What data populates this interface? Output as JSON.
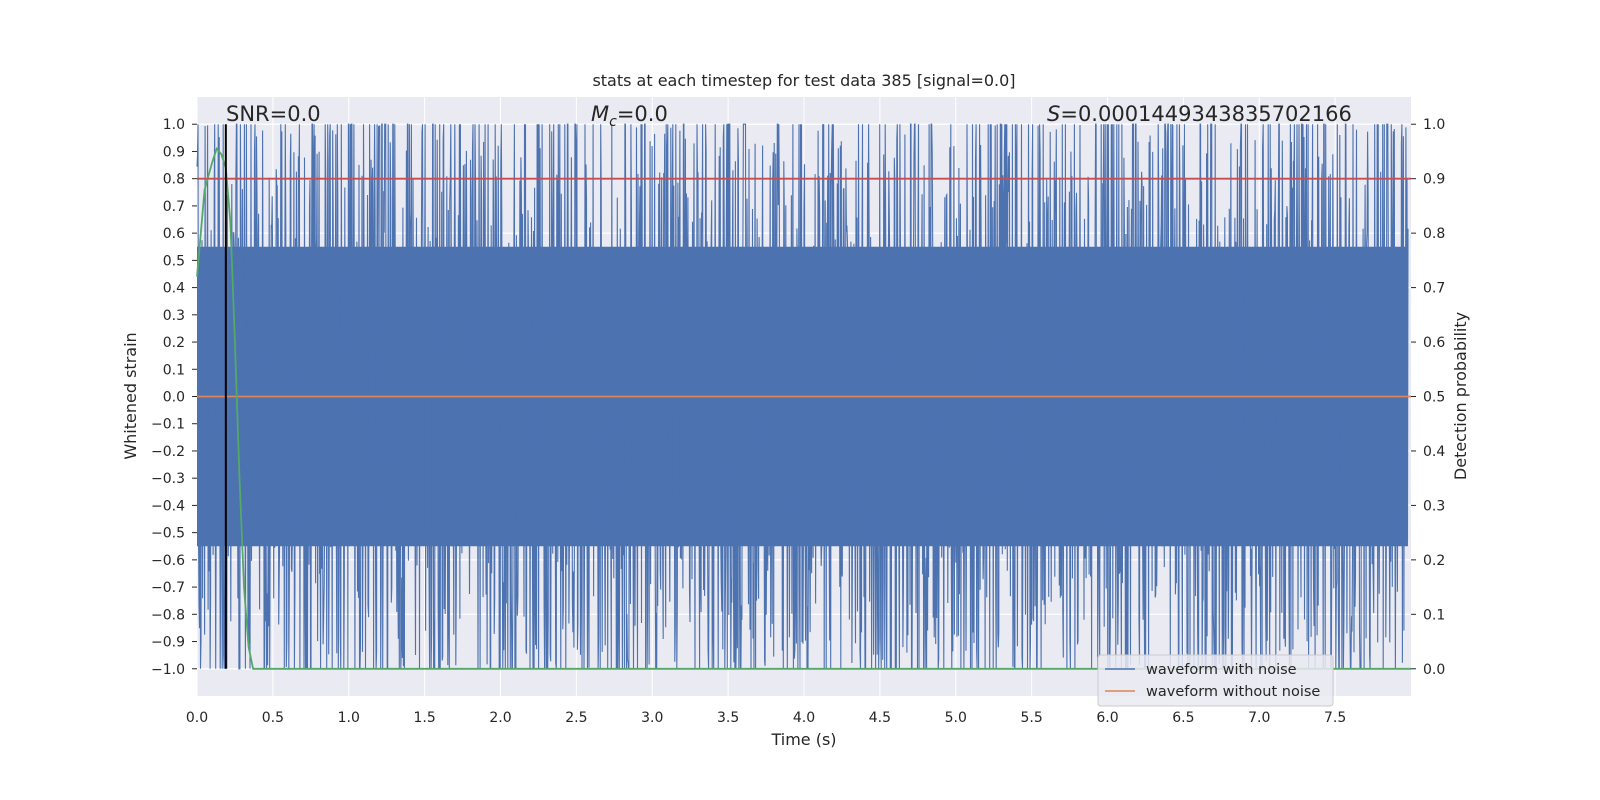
{
  "chart_data": {
    "type": "line",
    "title": "stats at each timestep for test data 385 [signal=0.0]",
    "xlabel": "Time (s)",
    "ylabel_left": "Whitened strain",
    "ylabel_right": "Detection probability",
    "xlim": [
      0.0,
      8.0
    ],
    "ylim_left": [
      -1.1,
      1.1
    ],
    "ylim_right": [
      -0.05,
      1.05
    ],
    "x_ticks": [
      "0.0",
      "0.5",
      "1.0",
      "1.5",
      "2.0",
      "2.5",
      "3.0",
      "3.5",
      "4.0",
      "4.5",
      "5.0",
      "5.5",
      "6.0",
      "6.5",
      "7.0",
      "7.5"
    ],
    "y_ticks_left": [
      "1.0",
      "0.9",
      "0.8",
      "0.7",
      "0.6",
      "0.5",
      "0.4",
      "0.3",
      "0.2",
      "0.1",
      "0.0",
      "−0.1",
      "−0.2",
      "−0.3",
      "−0.4",
      "−0.5",
      "−0.6",
      "−0.7",
      "−0.8",
      "−0.9",
      "−1.0"
    ],
    "y_ticks_right": [
      "1.0",
      "0.9",
      "0.8",
      "0.7",
      "0.6",
      "0.5",
      "0.4",
      "0.3",
      "0.2",
      "0.1",
      "0.0"
    ],
    "grid": true,
    "annotations": {
      "snr": "SNR=0.0",
      "mc_symbol": "M",
      "mc_sub": "c",
      "mc_value": "=0.0",
      "s_symbol": "S",
      "s_value": "=0.00014493438357021​66"
    },
    "legend": {
      "placement": "bottom-right",
      "entries": [
        "waveform with noise",
        "waveform without noise"
      ]
    },
    "series": [
      {
        "name": "waveform with noise",
        "axis": "left",
        "color": "#4c72b0",
        "note_range": [
          -1.0,
          1.0
        ]
      },
      {
        "name": "waveform without noise",
        "axis": "left",
        "color": "#dd8452",
        "x": [
          0.0,
          8.0
        ],
        "y": [
          0.0,
          0.0
        ]
      },
      {
        "axis": "right",
        "color": "#55a868",
        "x": [
          0.0,
          0.05,
          0.1,
          0.13,
          0.16,
          0.19,
          0.22,
          0.25,
          0.28,
          0.31,
          0.34,
          0.37,
          0.4,
          8.0
        ],
        "y": [
          0.72,
          0.88,
          0.93,
          0.955,
          0.945,
          0.92,
          0.82,
          0.6,
          0.35,
          0.15,
          0.04,
          0.0,
          0.0,
          0.0
        ]
      },
      {
        "axis": "right",
        "color": "#c44e52",
        "x": [
          0.0,
          8.0
        ],
        "y": [
          0.9,
          0.9
        ]
      }
    ],
    "vline_x": 0.19
  },
  "colors": {
    "axes_bg": "#eaeaf2",
    "grid": "#ffffff",
    "noise": "#4c72b0",
    "clean": "#dd8452",
    "prob": "#55a868",
    "threshold": "#c44e52",
    "vline": "#000000"
  }
}
